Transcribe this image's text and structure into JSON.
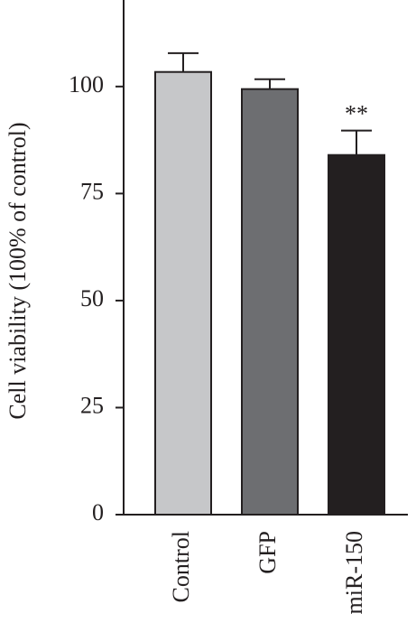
{
  "chart_data": {
    "type": "bar",
    "y_label": "Cell viability (100% of control)",
    "categories": [
      "Control",
      "GFP",
      "miR-150"
    ],
    "values": [
      103.4,
      99.4,
      84.0
    ],
    "errors": [
      4.4,
      2.3,
      5.7
    ],
    "colors": [
      "#c6c7c9",
      "#6d6e71",
      "#231f20"
    ],
    "annotation": "**",
    "ylim": [
      0,
      120
    ],
    "yticks": [
      0,
      25,
      50,
      75,
      100
    ]
  }
}
